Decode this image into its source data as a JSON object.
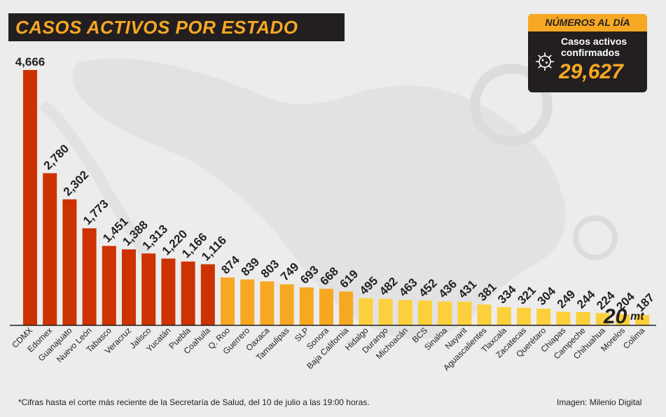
{
  "title": "CASOS ACTIVOS POR ESTADO",
  "summary": {
    "header": "NÚMEROS AL DÍA",
    "label": "Casos activos confirmados",
    "value": "29,627"
  },
  "footnote": "*Cifras hasta el corte más reciente de la Secretaría de Salud, del 10 de julio a las 19:00 horas.",
  "credit": "Imagen: Milenio Digital",
  "logo": {
    "number": "20",
    "brand": "mt"
  },
  "colors": {
    "red": "#cc3300",
    "orange": "#f7a823",
    "yellow": "#fcd03a",
    "dark": "#231f20",
    "background": "#ececec"
  },
  "chart_data": {
    "type": "bar",
    "title": "CASOS ACTIVOS POR ESTADO",
    "xlabel": "",
    "ylabel": "",
    "ylim": [
      0,
      4666
    ],
    "grid": false,
    "categories": [
      "CDMX",
      "Edomex",
      "Guanajuato",
      "Nuevo León",
      "Tabasco",
      "Veracruz",
      "Jalisco",
      "Yucatán",
      "Puebla",
      "Coahuila",
      "Q. Roo",
      "Guerrero",
      "Oaxaca",
      "Tamaulipas",
      "SLP",
      "Sonora",
      "Baja California",
      "Hidalgo",
      "Durango",
      "Michoacán",
      "BCS",
      "Sinaloa",
      "Nayarit",
      "Aguascalientes",
      "Tlaxcala",
      "Zacatecas",
      "Querétaro",
      "Chiapas",
      "Campeche",
      "Chihuahua",
      "Morelos",
      "Colima"
    ],
    "values": [
      4666,
      2780,
      2302,
      1773,
      1451,
      1388,
      1313,
      1220,
      1166,
      1116,
      874,
      839,
      803,
      749,
      693,
      668,
      619,
      495,
      482,
      463,
      452,
      436,
      431,
      381,
      334,
      321,
      304,
      249,
      244,
      224,
      204,
      187
    ],
    "labels": [
      "4,666",
      "2,780",
      "2,302",
      "1,773",
      "1,451",
      "1,388",
      "1,313",
      "1,220",
      "1,166",
      "1,116",
      "874",
      "839",
      "803",
      "749",
      "693",
      "668",
      "619",
      "495",
      "482",
      "463",
      "452",
      "436",
      "431",
      "381",
      "334",
      "321",
      "304",
      "249",
      "244",
      "224",
      "204",
      "187"
    ],
    "tiers": [
      "red",
      "red",
      "red",
      "red",
      "red",
      "red",
      "red",
      "red",
      "red",
      "red",
      "orange",
      "orange",
      "orange",
      "orange",
      "orange",
      "orange",
      "orange",
      "yellow",
      "yellow",
      "yellow",
      "yellow",
      "yellow",
      "yellow",
      "yellow",
      "yellow",
      "yellow",
      "yellow",
      "yellow",
      "yellow",
      "yellow",
      "yellow",
      "yellow"
    ]
  }
}
